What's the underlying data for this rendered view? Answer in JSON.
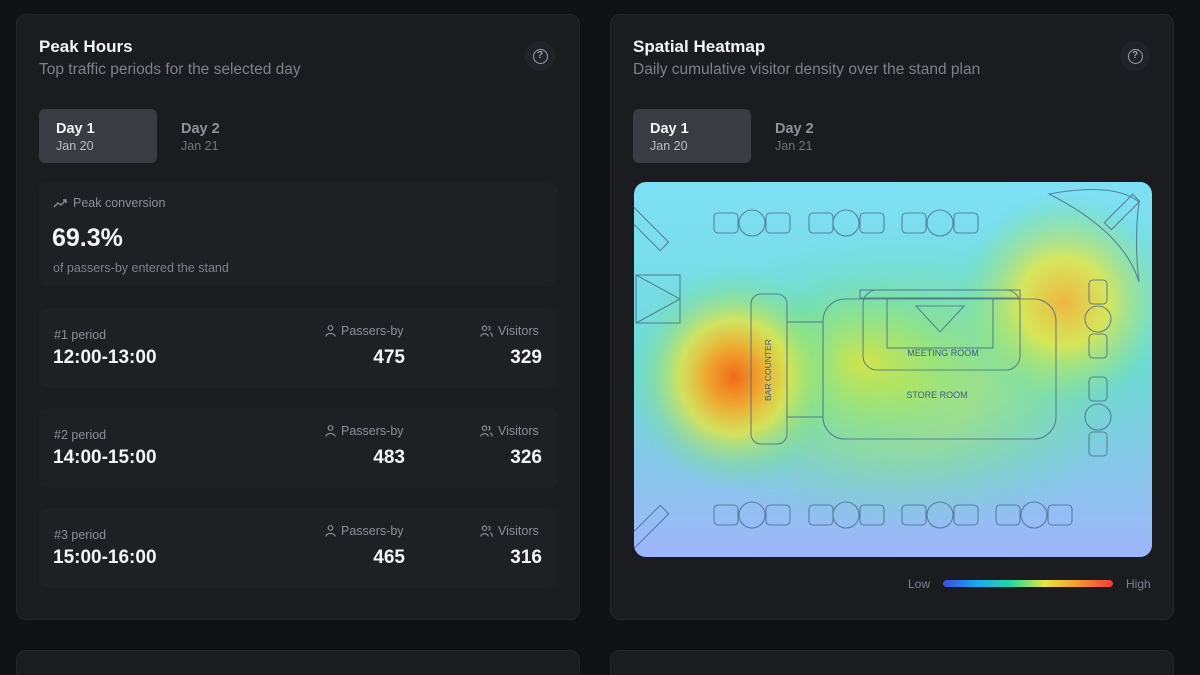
{
  "peak_hours": {
    "title": "Peak Hours",
    "subtitle": "Top traffic periods for the selected day",
    "tabs": [
      {
        "label": "Day 1",
        "date": "Jan 20",
        "active": true
      },
      {
        "label": "Day 2",
        "date": "Jan 21",
        "active": false
      }
    ],
    "conversion": {
      "label": "Peak conversion",
      "value": "69.3%",
      "description": "of passers-by entered the stand"
    },
    "columns": {
      "passers_by": "Passers-by",
      "visitors": "Visitors"
    },
    "periods": [
      {
        "label": "#1 period",
        "time": "12:00-13:00",
        "passers_by": "475",
        "visitors": "329"
      },
      {
        "label": "#2 period",
        "time": "14:00-15:00",
        "passers_by": "483",
        "visitors": "326"
      },
      {
        "label": "#3 period",
        "time": "15:00-16:00",
        "passers_by": "465",
        "visitors": "316"
      }
    ]
  },
  "spatial_heatmap": {
    "title": "Spatial Heatmap",
    "subtitle": "Daily cumulative visitor density over the stand plan",
    "tabs": [
      {
        "label": "Day 1",
        "date": "Jan 20",
        "active": true
      },
      {
        "label": "Day 2",
        "date": "Jan 21",
        "active": false
      }
    ],
    "map_labels": {
      "bar_counter": "BAR COUNTER",
      "meeting_room": "MEETING ROOM",
      "store_room": "STORE ROOM"
    },
    "legend": {
      "low": "Low",
      "high": "High"
    }
  },
  "icons": {
    "help": "help-circle-icon",
    "trend": "trending-up-icon",
    "passers": "person-walking-icon",
    "visitors": "users-icon"
  },
  "colors": {
    "background": "#111215",
    "card": "#1a1c20",
    "active_tab": "#393c43"
  }
}
